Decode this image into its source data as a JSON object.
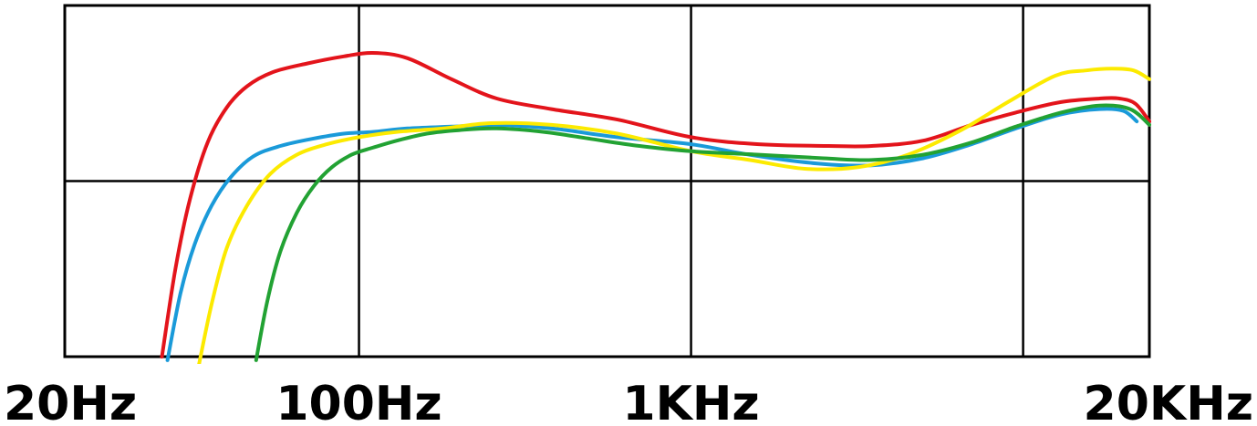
{
  "chart_data": {
    "type": "line",
    "title": "",
    "xlabel": "",
    "ylabel": "",
    "x_scale": "log",
    "xlim": [
      13,
      24000
    ],
    "ylim": [
      0,
      100
    ],
    "x_ticks": [
      {
        "value": 100,
        "label": "100Hz"
      },
      {
        "value": 1000,
        "label": "1KHz"
      },
      {
        "value": 10000,
        "label": ""
      }
    ],
    "x_tick_labels": [
      {
        "value": 20,
        "label": "20Hz"
      },
      {
        "value": 100,
        "label": "100Hz"
      },
      {
        "value": 1000,
        "label": "1KHz"
      },
      {
        "value": 20000,
        "label": "20KHz"
      }
    ],
    "y_gridlines": [
      50
    ],
    "grid": true,
    "legend": "none",
    "series": [
      {
        "color": "#e3141b",
        "x": [
          25.5,
          28,
          31,
          35,
          40,
          46,
          55,
          70,
          90,
          110,
          140,
          190,
          260,
          380,
          600,
          1000,
          1600,
          2600,
          3500,
          5000,
          7000,
          9500,
          13000,
          17000,
          19500,
          21800,
          24000
        ],
        "y": [
          0,
          25,
          45,
          61,
          71,
          77,
          81,
          83.5,
          85.5,
          86.5,
          85,
          79,
          73.5,
          70.5,
          67.5,
          62.5,
          60.5,
          60,
          60,
          61.5,
          66,
          69.5,
          72.5,
          73.5,
          73.5,
          72,
          67
        ]
      },
      {
        "color": "#1a9ad9",
        "x": [
          26.5,
          29,
          32,
          36,
          41,
          48,
          58,
          72,
          90,
          110,
          140,
          190,
          260,
          380,
          600,
          1000,
          1500,
          2400,
          3500,
          5000,
          7000,
          9500,
          13000,
          17000,
          20000,
          22000
        ],
        "y": [
          -1,
          18,
          32,
          43,
          51,
          57,
          60,
          62,
          63.5,
          64,
          65,
          65.5,
          66,
          65,
          62.5,
          60.5,
          57.5,
          55,
          54.5,
          56.5,
          60.5,
          65,
          69,
          70.5,
          70,
          67
        ]
      },
      {
        "color": "#fcea00",
        "x": [
          33,
          36,
          40,
          46,
          54,
          65,
          80,
          100,
          130,
          180,
          250,
          380,
          600,
          1000,
          1500,
          2200,
          3200,
          4500,
          6500,
          9000,
          12500,
          15500,
          18500,
          21500,
          24000
        ],
        "y": [
          -2,
          15,
          31,
          43,
          52,
          57.5,
          60.5,
          62.5,
          64,
          65,
          66.5,
          66,
          63.5,
          58.5,
          56,
          53.5,
          54,
          57.5,
          64.5,
          72.5,
          80,
          81.5,
          82,
          81.5,
          79
        ]
      },
      {
        "color": "#22a233",
        "x": [
          49,
          53,
          58,
          65,
          73,
          83,
          95,
          110,
          130,
          160,
          200,
          260,
          360,
          500,
          700,
          1000,
          1600,
          2500,
          3500,
          5000,
          7000,
          9500,
          13000,
          17000,
          21000,
          24000
        ],
        "y": [
          -1,
          16,
          30,
          41,
          48.5,
          54,
          57.5,
          59.5,
          61.5,
          63.5,
          64.5,
          65,
          64,
          62,
          60,
          58.5,
          57.5,
          56.5,
          56,
          57.5,
          61,
          65.5,
          69.5,
          71.5,
          70.5,
          66
        ]
      }
    ]
  }
}
